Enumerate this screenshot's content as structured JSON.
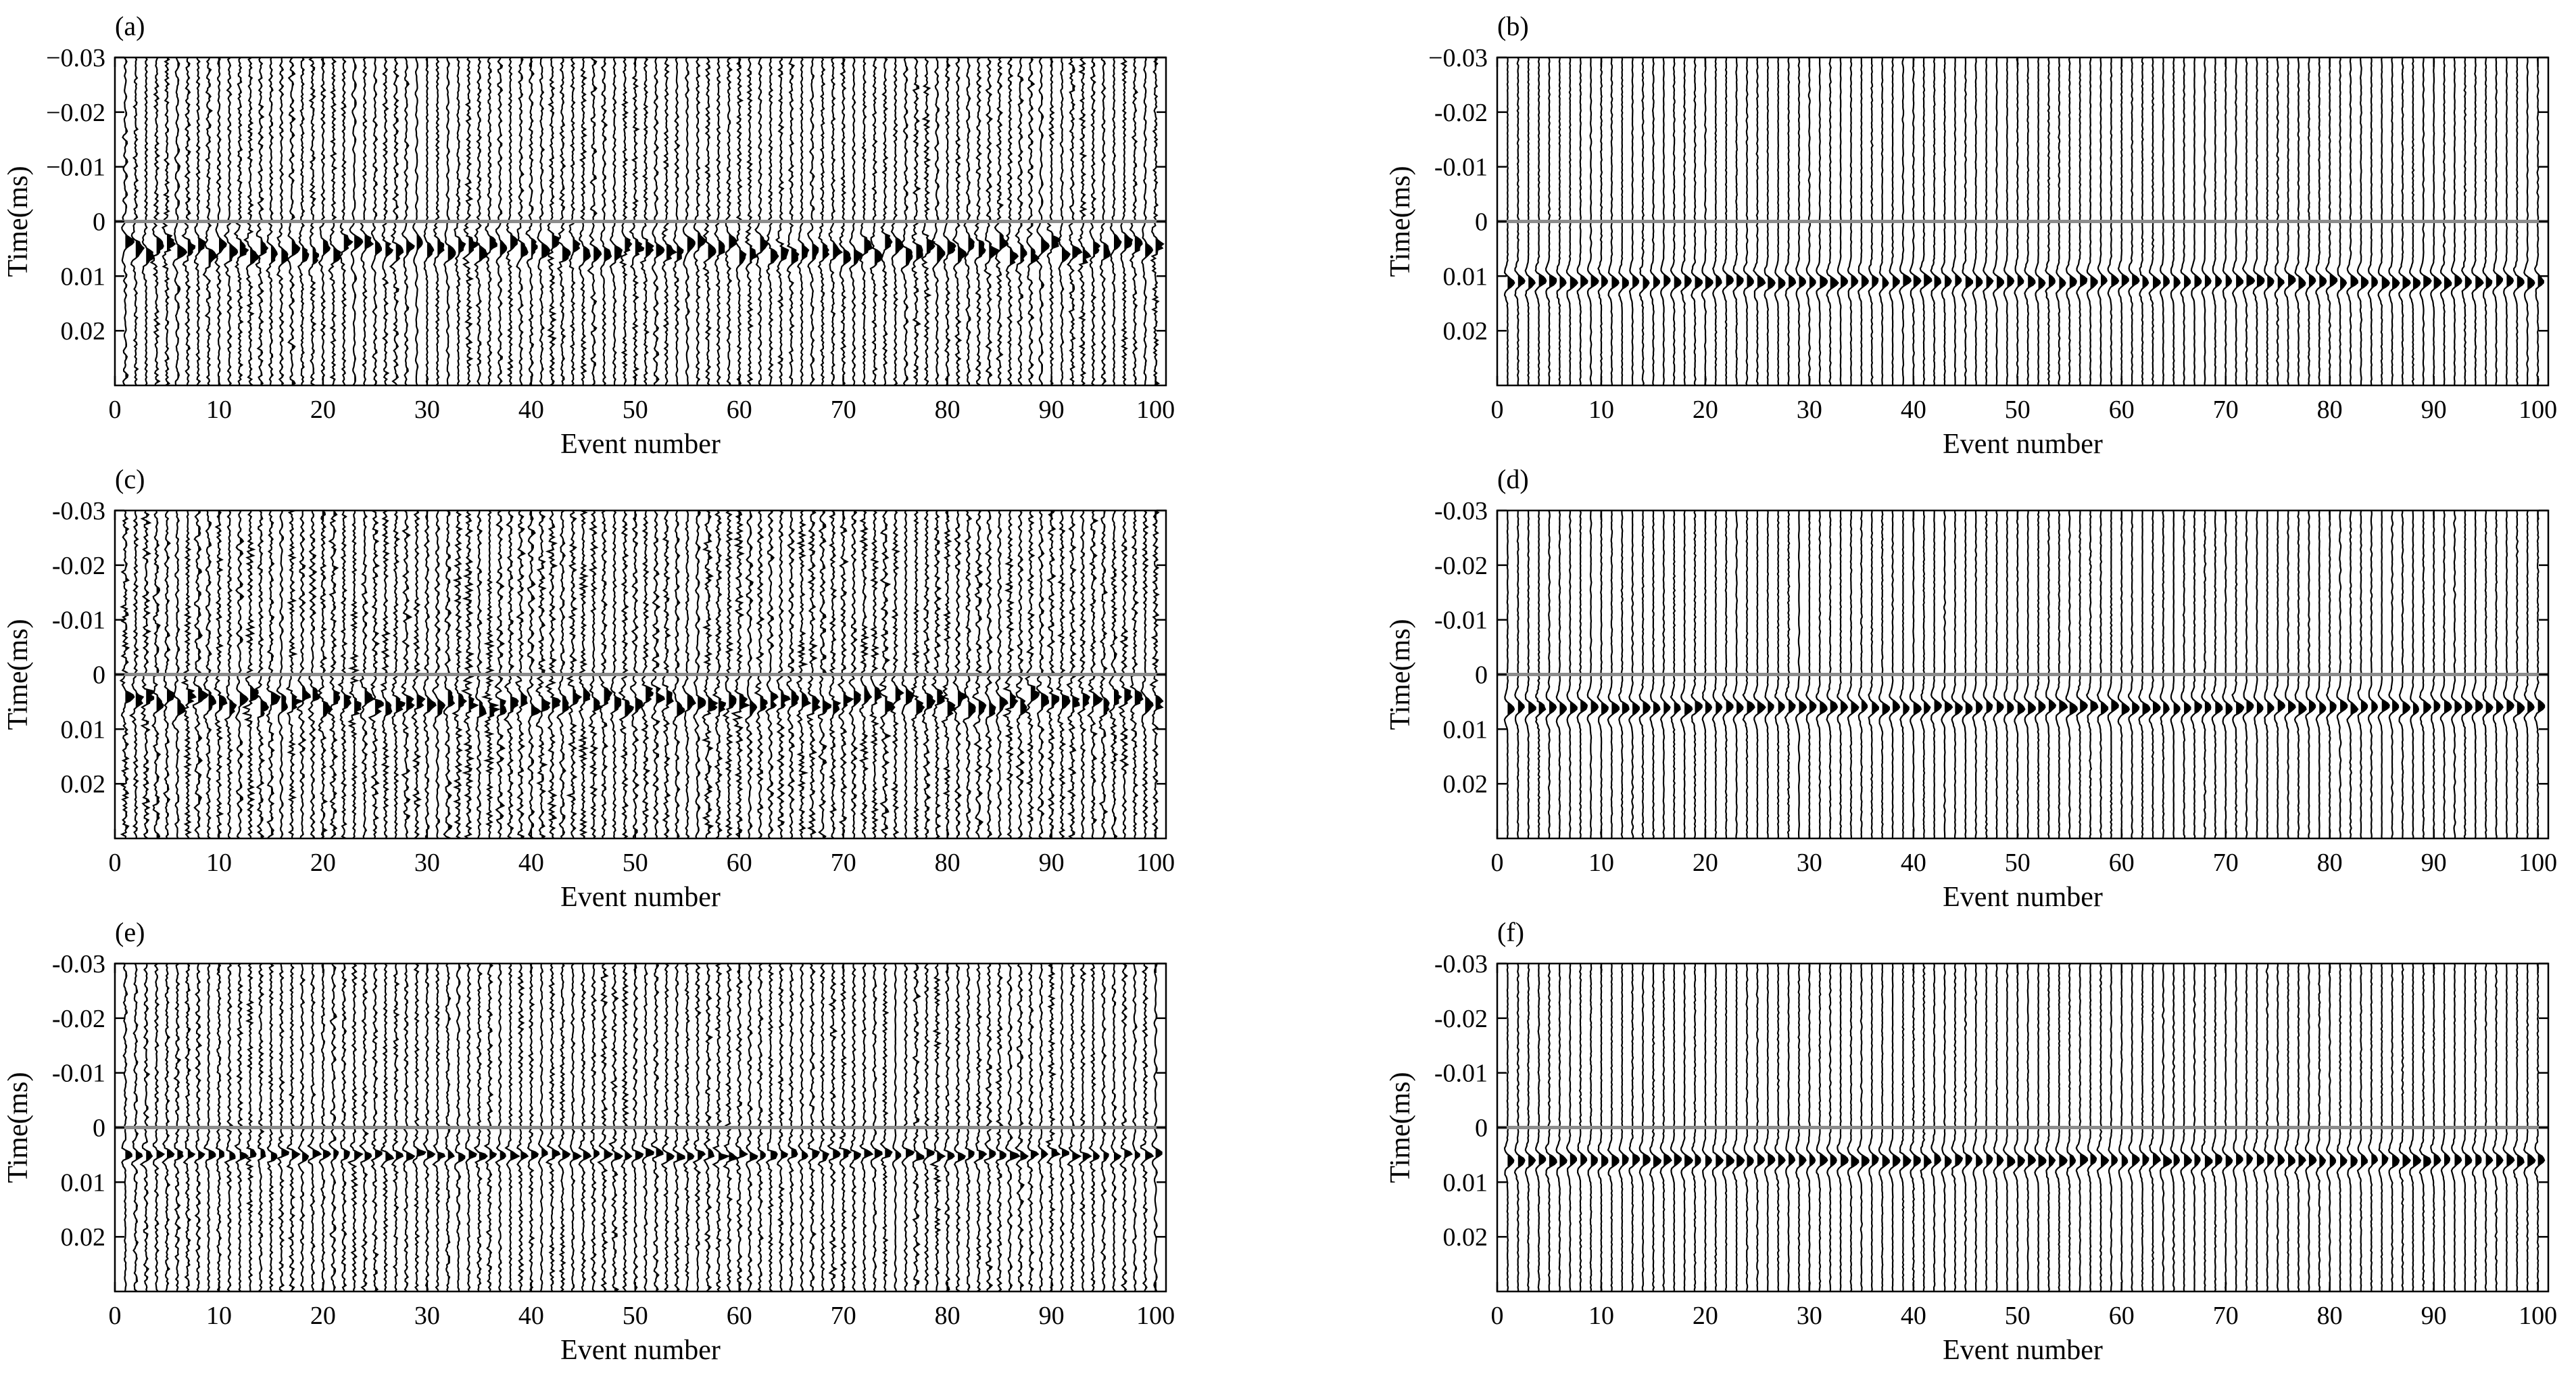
{
  "colors": {
    "trace": "#000000",
    "zero_line": "#8c8c8c",
    "axes": "#000000",
    "background": "#ffffff"
  },
  "chart_data": [
    {
      "id": "a",
      "panel_label": "(a)",
      "type": "seismic_wiggle",
      "xlabel": "Event number",
      "ylabel": "Time(ms)",
      "xlim": [
        0,
        101
      ],
      "ylim": [
        -0.03,
        0.03
      ],
      "y_reversed": true,
      "xticks": [
        0,
        10,
        20,
        30,
        40,
        50,
        60,
        70,
        80,
        90,
        100
      ],
      "xtick_labels": [
        "0",
        "10",
        "20",
        "30",
        "40",
        "50",
        "60",
        "70",
        "80",
        "90",
        "100"
      ],
      "yticks": [
        -0.03,
        -0.02,
        -0.01,
        0,
        0.01,
        0.02
      ],
      "ytick_labels": [
        "−0.03",
        "−0.02",
        "−0.01",
        "0",
        "0.01",
        "0.02"
      ],
      "reference_line_time": 0,
      "n_traces": 100,
      "event_time_center": 0.005,
      "event_time_jitter": 0.0015,
      "noise_level": "high",
      "event_sharpness": "broad"
    },
    {
      "id": "b",
      "panel_label": "(b)",
      "type": "seismic_wiggle",
      "xlabel": "Event number",
      "ylabel": "Time(ms)",
      "xlim": [
        0,
        101
      ],
      "ylim": [
        -0.03,
        0.03
      ],
      "y_reversed": true,
      "xticks": [
        0,
        10,
        20,
        30,
        40,
        50,
        60,
        70,
        80,
        90,
        100
      ],
      "xtick_labels": [
        "0",
        "10",
        "20",
        "30",
        "40",
        "50",
        "60",
        "70",
        "80",
        "90",
        "100"
      ],
      "yticks": [
        -0.03,
        -0.02,
        -0.01,
        0,
        0.01,
        0.02
      ],
      "ytick_labels": [
        "−0.03",
        "-0.02",
        "-0.01",
        "0",
        "0.01",
        "0.02"
      ],
      "reference_line_time": 0,
      "n_traces": 100,
      "event_time_center": 0.011,
      "event_time_jitter": 0.0003,
      "noise_level": "low",
      "event_sharpness": "coherent"
    },
    {
      "id": "c",
      "panel_label": "(c)",
      "type": "seismic_wiggle",
      "xlabel": "Event number",
      "ylabel": "Time(ms)",
      "xlim": [
        0,
        101
      ],
      "ylim": [
        -0.03,
        0.03
      ],
      "y_reversed": true,
      "xticks": [
        0,
        10,
        20,
        30,
        40,
        50,
        60,
        70,
        80,
        90,
        100
      ],
      "xtick_labels": [
        "0",
        "10",
        "20",
        "30",
        "40",
        "50",
        "60",
        "70",
        "80",
        "90",
        "100"
      ],
      "yticks": [
        -0.03,
        -0.02,
        -0.01,
        0,
        0.01,
        0.02
      ],
      "ytick_labels": [
        "-0.03",
        "-0.02",
        "-0.01",
        "0",
        "0.01",
        "0.02"
      ],
      "reference_line_time": 0,
      "n_traces": 100,
      "event_time_center": 0.005,
      "event_time_jitter": 0.0015,
      "noise_level": "very high",
      "event_sharpness": "broad"
    },
    {
      "id": "d",
      "panel_label": "(d)",
      "type": "seismic_wiggle",
      "xlabel": "Event number",
      "ylabel": "Time(ms)",
      "xlim": [
        0,
        101
      ],
      "ylim": [
        -0.03,
        0.03
      ],
      "y_reversed": true,
      "xticks": [
        0,
        10,
        20,
        30,
        40,
        50,
        60,
        70,
        80,
        90,
        100
      ],
      "xtick_labels": [
        "0",
        "10",
        "20",
        "30",
        "40",
        "50",
        "60",
        "70",
        "80",
        "90",
        "100"
      ],
      "yticks": [
        -0.03,
        -0.02,
        -0.01,
        0,
        0.01,
        0.02
      ],
      "ytick_labels": [
        "-0.03",
        "-0.02",
        "-0.01",
        "0",
        "0.01",
        "0.02"
      ],
      "reference_line_time": 0,
      "n_traces": 100,
      "event_time_center": 0.006,
      "event_time_jitter": 0.0003,
      "noise_level": "low",
      "event_sharpness": "coherent"
    },
    {
      "id": "e",
      "panel_label": "(e)",
      "type": "seismic_wiggle",
      "xlabel": "Event number",
      "ylabel": "Time(ms)",
      "xlim": [
        0,
        101
      ],
      "ylim": [
        -0.03,
        0.03
      ],
      "y_reversed": true,
      "xticks": [
        0,
        10,
        20,
        30,
        40,
        50,
        60,
        70,
        80,
        90,
        100
      ],
      "xtick_labels": [
        "0",
        "10",
        "20",
        "30",
        "40",
        "50",
        "60",
        "70",
        "80",
        "90",
        "100"
      ],
      "yticks": [
        -0.03,
        -0.02,
        -0.01,
        0,
        0.01,
        0.02
      ],
      "ytick_labels": [
        "-0.03",
        "-0.02",
        "-0.01",
        "0",
        "0.01",
        "0.02"
      ],
      "reference_line_time": 0,
      "n_traces": 100,
      "event_time_center": 0.005,
      "event_time_jitter": 0.0004,
      "noise_level": "high",
      "event_sharpness": "sharp"
    },
    {
      "id": "f",
      "panel_label": "(f)",
      "type": "seismic_wiggle",
      "xlabel": "Event number",
      "ylabel": "Time(ms)",
      "xlim": [
        0,
        101
      ],
      "ylim": [
        -0.03,
        0.03
      ],
      "y_reversed": true,
      "xticks": [
        0,
        10,
        20,
        30,
        40,
        50,
        60,
        70,
        80,
        90,
        100
      ],
      "xtick_labels": [
        "0",
        "10",
        "20",
        "30",
        "40",
        "50",
        "60",
        "70",
        "80",
        "90",
        "100"
      ],
      "yticks": [
        -0.03,
        -0.02,
        -0.01,
        0,
        0.01,
        0.02
      ],
      "ytick_labels": [
        "-0.03",
        "-0.02",
        "-0.01",
        "0",
        "0.01",
        "0.02"
      ],
      "reference_line_time": 0,
      "n_traces": 100,
      "event_time_center": 0.006,
      "event_time_jitter": 0.0002,
      "noise_level": "low",
      "event_sharpness": "coherent"
    }
  ]
}
